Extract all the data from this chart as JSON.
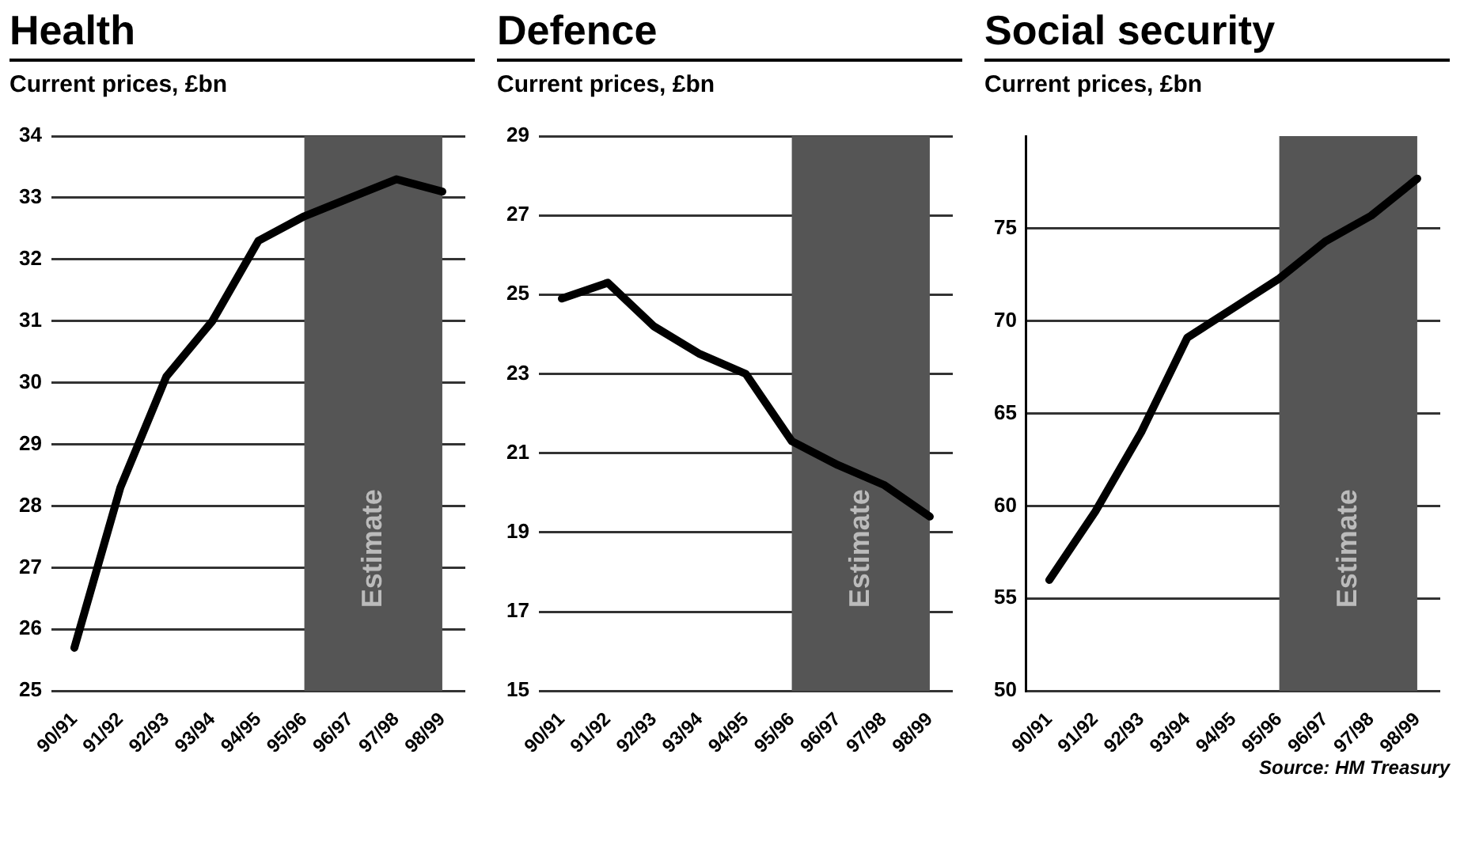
{
  "chart_data": [
    {
      "type": "line",
      "title": "Health",
      "subtitle": "Current prices, £bn",
      "categories": [
        "90/91",
        "91/92",
        "92/93",
        "93/94",
        "94/95",
        "95/96",
        "96/97",
        "97/98",
        "98/99"
      ],
      "series": [
        {
          "color": "#000000",
          "values": [
            25.7,
            28.3,
            30.1,
            31.0,
            32.3,
            32.7,
            33.0,
            33.3,
            33.1
          ]
        }
      ],
      "ylim": [
        25,
        34
      ],
      "yticks": [
        25,
        26,
        27,
        28,
        29,
        30,
        31,
        32,
        33,
        34
      ],
      "grid": "y",
      "legend": false,
      "bands": [
        {
          "axis": "x",
          "from": "95/96",
          "to": "98/99",
          "label": "Estimate",
          "color": "#555555"
        }
      ]
    },
    {
      "type": "line",
      "title": "Defence",
      "subtitle": "Current prices, £bn",
      "categories": [
        "90/91",
        "91/92",
        "92/93",
        "93/94",
        "94/95",
        "95/96",
        "96/97",
        "97/98",
        "98/99"
      ],
      "series": [
        {
          "color": "#000000",
          "values": [
            24.9,
            25.3,
            24.2,
            23.5,
            23.0,
            21.3,
            20.7,
            20.2,
            19.4
          ]
        }
      ],
      "ylim": [
        15,
        29
      ],
      "yticks": [
        15,
        17,
        19,
        21,
        23,
        25,
        27,
        29
      ],
      "grid": "y",
      "legend": false,
      "bands": [
        {
          "axis": "x",
          "from": "95/96",
          "to": "98/99",
          "label": "Estimate",
          "color": "#555555"
        }
      ]
    },
    {
      "type": "line",
      "title": "Social security",
      "subtitle": "Current prices, £bn",
      "categories": [
        "90/91",
        "91/92",
        "92/93",
        "93/94",
        "94/95",
        "95/96",
        "96/97",
        "97/98",
        "98/99"
      ],
      "series": [
        {
          "color": "#000000",
          "values": [
            56.0,
            59.7,
            64.0,
            69.1,
            70.7,
            72.3,
            74.3,
            75.7,
            77.7
          ]
        }
      ],
      "ylim": [
        50,
        80
      ],
      "yticks": [
        50,
        55,
        60,
        65,
        70,
        75
      ],
      "grid": "y",
      "legend": false,
      "bands": [
        {
          "axis": "x",
          "from": "95/96",
          "to": "98/99",
          "label": "Estimate",
          "color": "#555555"
        }
      ],
      "annotations": [
        "Source: HM Treasury"
      ]
    }
  ]
}
